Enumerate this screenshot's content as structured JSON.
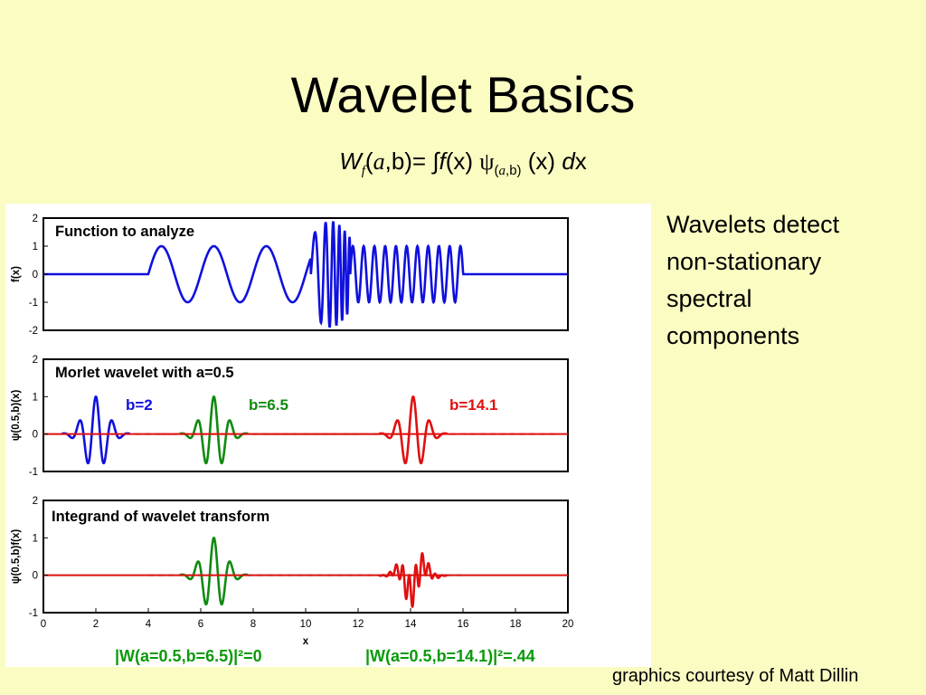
{
  "slide": {
    "title": "Wavelet Basics",
    "formula": {
      "W": "W",
      "f_sub": "f",
      "open": "(",
      "a": "a",
      "rest1": ",b)=  ",
      "integral": "∫",
      "f": "f",
      "x1": "(x) ",
      "psi": "ψ",
      "psi_sub_open": "(",
      "psi_sub_a": "a",
      "psi_sub_rest": ",b)",
      "x2": " (x) ",
      "d": "d",
      "x3": "x"
    },
    "side_text": [
      "Wavelets detect",
      "non-stationary",
      "spectral",
      "components"
    ],
    "credit": "graphics courtesy of Matt Dillin"
  },
  "figure": {
    "colors": {
      "blue": "#1010dd",
      "green": "#108a10",
      "red": "#e01010"
    },
    "x_axis_label": "x",
    "x_ticks": [
      "0",
      "2",
      "4",
      "6",
      "8",
      "10",
      "12",
      "14",
      "16",
      "18",
      "20"
    ],
    "panels": [
      {
        "label": "Function to analyze",
        "y_label": "f(x)",
        "y_ticks": [
          "2",
          "1",
          "0",
          "-1",
          "-2"
        ]
      },
      {
        "label": "Morlet wavelet with a=0.5",
        "y_label": "ψ(0.5,b)(x)",
        "y_ticks": [
          "2",
          "1",
          "0",
          "-1"
        ],
        "b_labels": [
          "b=2",
          "b=6.5",
          "b=14.1"
        ]
      },
      {
        "label": "Integrand of wavelet transform",
        "y_label": "ψ(0.5,b)f(x)",
        "y_ticks": [
          "2",
          "1",
          "0",
          "-1"
        ]
      }
    ],
    "results": [
      "|W(a=0.5,b=6.5)|²=0",
      "|W(a=0.5,b=14.1)|²=.44"
    ]
  },
  "chart_data": {
    "type": "line",
    "xlabel": "x",
    "xlim": [
      0,
      20
    ],
    "panels": [
      {
        "title": "Function to analyze",
        "ylabel": "f(x)",
        "ylim": [
          -2,
          2
        ],
        "segments": [
          {
            "x_range": [
              0,
              4
            ],
            "description": "f(x)=0"
          },
          {
            "x_range": [
              4,
              10.2
            ],
            "amplitude": 1,
            "period": 2.0
          },
          {
            "x_range": [
              10.2,
              11.7
            ],
            "amplitude": 1.9,
            "description": "chirp burst"
          },
          {
            "x_range": [
              11.7,
              16
            ],
            "amplitude": 1,
            "period": 0.41
          },
          {
            "x_range": [
              16,
              20
            ],
            "description": "f(x)=0"
          }
        ]
      },
      {
        "title": "Morlet wavelet with a=0.5",
        "ylabel": "ψ(0.5,b)(x)",
        "ylim": [
          -1,
          2
        ],
        "series": [
          {
            "name": "b=2",
            "center": 2,
            "peak": 1.0
          },
          {
            "name": "b=6.5",
            "center": 6.5,
            "peak": 1.0
          },
          {
            "name": "b=14.1",
            "center": 14.1,
            "peak": 1.0
          }
        ]
      },
      {
        "title": "Integrand of wavelet transform",
        "ylabel": "ψ(0.5,b)f(x)",
        "ylim": [
          -1,
          2
        ],
        "series": [
          {
            "name": "b=6.5",
            "center": 6.5,
            "peak": 1.0
          },
          {
            "name": "b=14.1",
            "center": 14.1,
            "peak": 0.9
          }
        ]
      }
    ],
    "annotations": [
      "|W(a=0.5,b=6.5)|²=0",
      "|W(a=0.5,b=14.1)|²=.44"
    ]
  }
}
